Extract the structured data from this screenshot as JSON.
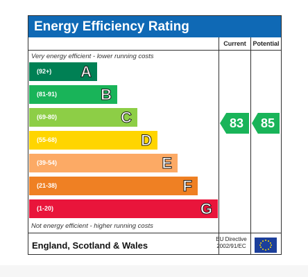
{
  "title": "Energy Efficiency Rating",
  "columns": {
    "current": "Current",
    "potential": "Potential"
  },
  "top_caption": "Very energy efficient - lower running costs",
  "bottom_caption": "Not energy efficient - higher running costs",
  "bands": [
    {
      "letter": "A",
      "range": "(92+)",
      "color": "#008054"
    },
    {
      "letter": "B",
      "range": "(81-91)",
      "color": "#19b459"
    },
    {
      "letter": "C",
      "range": "(69-80)",
      "color": "#8dce46"
    },
    {
      "letter": "D",
      "range": "(55-68)",
      "color": "#ffd500"
    },
    {
      "letter": "E",
      "range": "(39-54)",
      "color": "#fcaa65"
    },
    {
      "letter": "F",
      "range": "(21-38)",
      "color": "#ef8023"
    },
    {
      "letter": "G",
      "range": "(1-20)",
      "color": "#e9153b"
    }
  ],
  "current_rating": {
    "value": "83",
    "band": "B",
    "color": "#19b459"
  },
  "potential_rating": {
    "value": "85",
    "band": "B",
    "color": "#19b459"
  },
  "footer": {
    "region": "England, Scotland & Wales",
    "directive_line1": "EU Directive",
    "directive_line2": "2002/91/EC"
  }
}
